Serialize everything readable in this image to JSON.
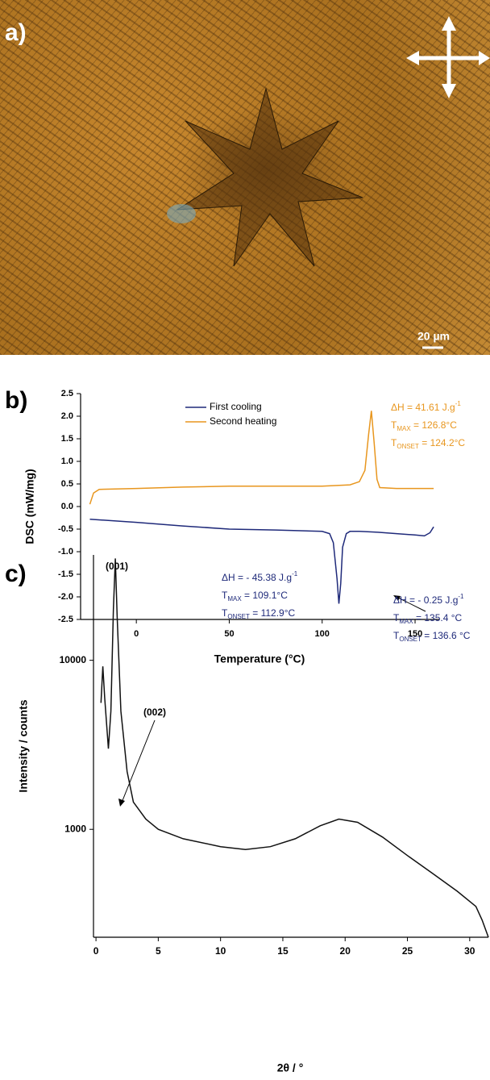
{
  "micrograph": {
    "label": "a)",
    "scale_bar": "20 µm"
  },
  "chart_data": [
    {
      "type": "line",
      "label": "b)",
      "x_label": "Temperature (°C)",
      "y_label": "DSC (mW/mg)",
      "xlim": [
        -30,
        163
      ],
      "ylim": [
        -2.5,
        2.5
      ],
      "xticks": [
        0,
        50,
        100,
        150
      ],
      "yticks": [
        2.5,
        {
          "value": 2,
          "label": "2.0"
        },
        1.5,
        {
          "value": 1,
          "label": "1.0"
        },
        0.5,
        {
          "value": 0,
          "label": "0.0"
        },
        -0.5,
        {
          "value": -1,
          "label": "-1.0"
        },
        -1.5,
        {
          "value": -2,
          "label": "-2.0"
        },
        -2.5
      ],
      "series": [
        {
          "name": "First cooling",
          "color": "#1f2a7a",
          "x": [
            -25,
            0,
            25,
            50,
            75,
            100,
            104,
            106,
            108,
            109,
            110,
            111,
            113,
            115,
            120,
            130,
            140,
            150,
            155,
            158,
            160
          ],
          "values": [
            -0.28,
            -0.35,
            -0.43,
            -0.5,
            -0.52,
            -0.55,
            -0.6,
            -0.8,
            -1.6,
            -2.15,
            -1.7,
            -0.9,
            -0.6,
            -0.55,
            -0.55,
            -0.57,
            -0.6,
            -0.63,
            -0.65,
            -0.58,
            -0.45
          ]
        },
        {
          "name": "Second heating",
          "color": "#e8961e",
          "x": [
            -25,
            -23,
            -20,
            0,
            25,
            50,
            75,
            100,
            115,
            120,
            123,
            125,
            126.5,
            128,
            129.5,
            131,
            140,
            150,
            160
          ],
          "values": [
            0.05,
            0.3,
            0.38,
            0.4,
            0.43,
            0.45,
            0.45,
            0.45,
            0.48,
            0.55,
            0.8,
            1.6,
            2.12,
            1.4,
            0.6,
            0.42,
            0.4,
            0.4,
            0.4
          ]
        }
      ],
      "annotations": [
        {
          "color": "#e8961e",
          "lines": [
            [
              {
                "t": "ΔH = 41.61 J.g"
              },
              {
                "sup": "-1"
              }
            ],
            [
              {
                "t": "T"
              },
              {
                "sub": "MAX"
              },
              {
                "t": " = 126.8°C"
              }
            ],
            [
              {
                "t": "T"
              },
              {
                "sub": "ONSET"
              },
              {
                "t": " = 124.2°C"
              }
            ]
          ]
        },
        {
          "color": "#1f2a7a",
          "lines": [
            [
              {
                "t": "ΔH = - 45.38 J.g"
              },
              {
                "sup": "-1"
              }
            ],
            [
              {
                "t": "T"
              },
              {
                "sub": "MAX"
              },
              {
                "t": " = 109.1°C"
              }
            ],
            [
              {
                "t": "T"
              },
              {
                "sub": "ONSET"
              },
              {
                "t": " = 112.9°C"
              }
            ]
          ]
        },
        {
          "color": "#1f2a7a",
          "lines": [
            [
              {
                "t": "ΔH = - 0.25 J.g"
              },
              {
                "sup": "-1"
              }
            ],
            [
              {
                "t": "T"
              },
              {
                "sub": "MAX"
              },
              {
                "t": " = 135.4 °C"
              }
            ],
            [
              {
                "t": "T"
              },
              {
                "sub": "ONSET"
              },
              {
                "t": " = 136.6 °C"
              }
            ]
          ]
        }
      ]
    },
    {
      "type": "line",
      "label": "c)",
      "x_label": "2θ / °",
      "y_label": "Intensity / counts",
      "log_y": true,
      "xlim": [
        -0.2,
        31.5
      ],
      "ylim": [
        230,
        42000
      ],
      "xticks": [
        0,
        5,
        10,
        15,
        20,
        25,
        30
      ],
      "yticks": [
        1000,
        10000
      ],
      "series": [
        {
          "color": "#111111",
          "x": [
            0.4,
            0.55,
            0.7,
            1.0,
            1.2,
            1.4,
            1.55,
            1.7,
            2.0,
            2.5,
            3.0,
            4,
            5,
            7,
            10,
            12,
            14,
            16,
            18,
            19.5,
            21,
            23,
            25,
            27,
            29,
            30.5,
            31,
            31.5
          ],
          "values": [
            5600,
            9200,
            6000,
            3000,
            5000,
            20000,
            40000,
            18000,
            5000,
            2200,
            1450,
            1150,
            1000,
            880,
            790,
            760,
            790,
            880,
            1050,
            1150,
            1100,
            900,
            700,
            550,
            430,
            350,
            290,
            230
          ]
        }
      ],
      "annotations": [
        "(001)",
        "(002)"
      ]
    }
  ]
}
